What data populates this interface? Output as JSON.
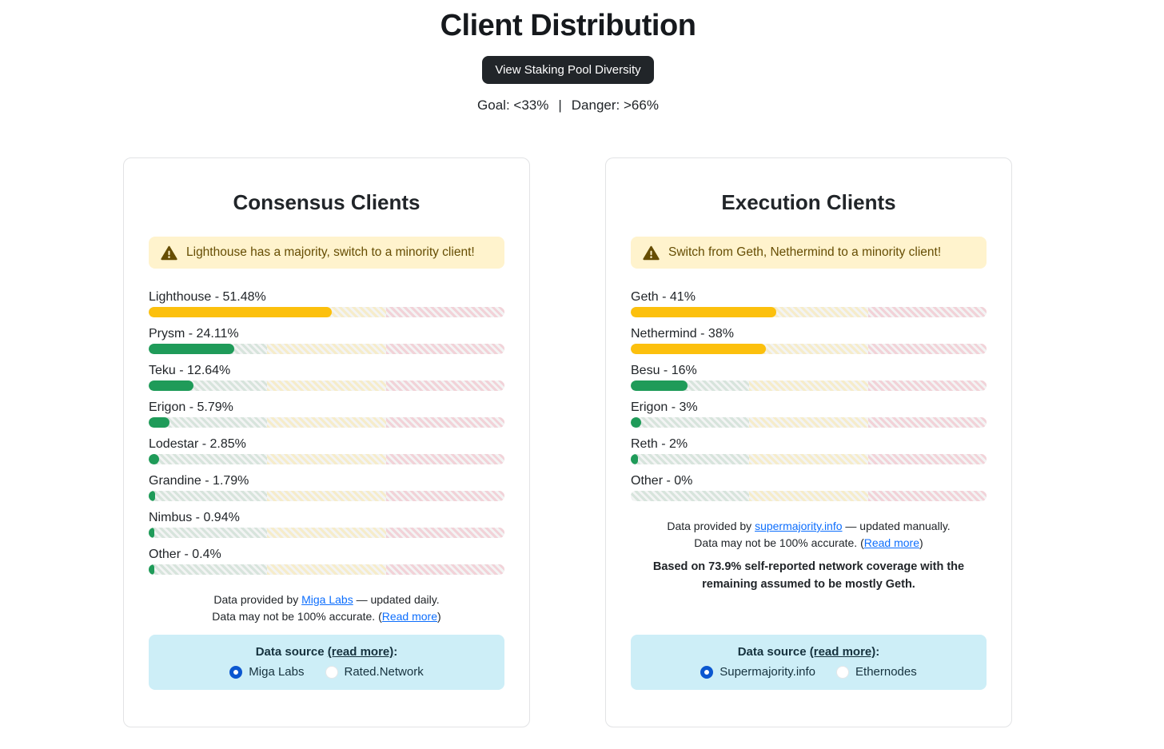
{
  "page": {
    "title": "Client Distribution",
    "button_label": "View Staking Pool Diversity",
    "goal": "Goal: <33%",
    "separator": "|",
    "danger": "Danger: >66%"
  },
  "colors": {
    "accent-link": "#0d6efd",
    "radio-blue": "#0b57d0",
    "button-bg": "#212529",
    "warn-bg": "#fff3cd",
    "warn-text": "#664d03",
    "info-bg": "#cdeef7",
    "fill-yellow": "#fcc00d",
    "fill-green": "#1f9b59",
    "zone-green": "#d7e4dc",
    "zone-yellow": "#f6ecca",
    "zone-pink": "#f2d2d8",
    "zone-base": "#f3f4f4"
  },
  "cards": [
    {
      "title": "Consensus Clients",
      "warning": "Lighthouse has a majority, switch to a minority client!",
      "bars": [
        {
          "label": "Lighthouse - 51.48%",
          "pct": 51.48,
          "color": "fill-yellow"
        },
        {
          "label": "Prysm - 24.11%",
          "pct": 24.11,
          "color": "fill-green"
        },
        {
          "label": "Teku - 12.64%",
          "pct": 12.64,
          "color": "fill-green"
        },
        {
          "label": "Erigon - 5.79%",
          "pct": 5.79,
          "color": "fill-green"
        },
        {
          "label": "Lodestar - 2.85%",
          "pct": 2.85,
          "color": "fill-green"
        },
        {
          "label": "Grandine - 1.79%",
          "pct": 1.79,
          "color": "fill-green"
        },
        {
          "label": "Nimbus - 0.94%",
          "pct": 0.94,
          "color": "fill-green"
        },
        {
          "label": "Other - 0.4%",
          "pct": 0.4,
          "color": "fill-green"
        }
      ],
      "footer": {
        "line1_prefix": "Data provided by ",
        "line1_link": "Miga Labs",
        "line1_suffix": " — updated daily.",
        "line2_prefix": "Data may not be 100% accurate. (",
        "line2_link": "Read more",
        "line2_suffix": ")"
      },
      "source_box": {
        "heading_prefix": "Data source ",
        "heading_link": "(read more)",
        "heading_suffix": ":",
        "options": [
          {
            "label": "Miga Labs",
            "selected": true
          },
          {
            "label": "Rated.Network",
            "selected": false
          }
        ]
      }
    },
    {
      "title": "Execution Clients",
      "warning": "Switch from Geth, Nethermind to a minority client!",
      "bars": [
        {
          "label": "Geth - 41%",
          "pct": 41,
          "color": "fill-yellow"
        },
        {
          "label": "Nethermind - 38%",
          "pct": 38,
          "color": "fill-yellow"
        },
        {
          "label": "Besu - 16%",
          "pct": 16,
          "color": "fill-green"
        },
        {
          "label": "Erigon - 3%",
          "pct": 3,
          "color": "fill-green"
        },
        {
          "label": "Reth - 2%",
          "pct": 2,
          "color": "fill-green"
        },
        {
          "label": "Other - 0%",
          "pct": 0,
          "color": "fill-green"
        }
      ],
      "footer": {
        "line1_prefix": "Data provided by ",
        "line1_link": "supermajority.info",
        "line1_suffix": " — updated manually.",
        "line2_prefix": "Data may not be 100% accurate. (",
        "line2_link": "Read more",
        "line2_suffix": ")"
      },
      "note": "Based on 73.9% self-reported network coverage with the remaining assumed to be mostly Geth.",
      "source_box": {
        "heading_prefix": "Data source ",
        "heading_link": "(read more)",
        "heading_suffix": ":",
        "options": [
          {
            "label": "Supermajority.info",
            "selected": true
          },
          {
            "label": "Ethernodes",
            "selected": false
          }
        ]
      }
    }
  ]
}
